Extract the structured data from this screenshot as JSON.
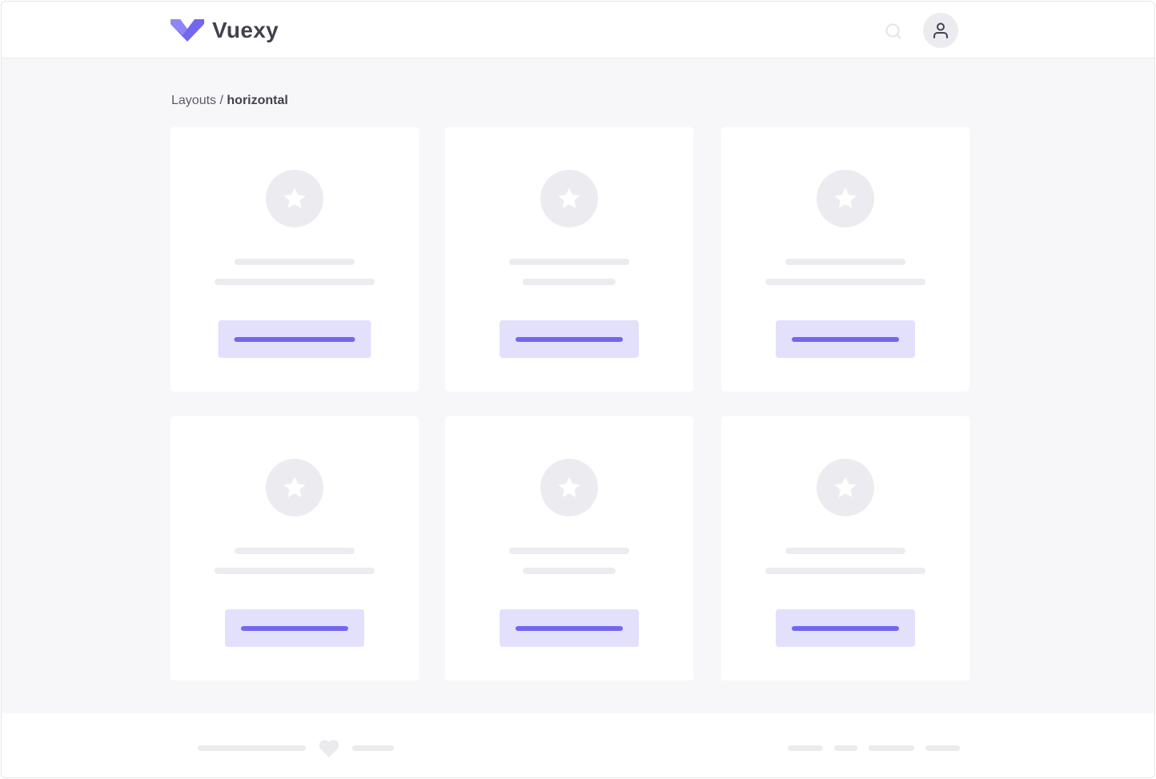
{
  "header": {
    "brand": "Vuexy",
    "logo_icon": "vuexy-logo",
    "search_icon": "search-icon",
    "avatar_icon": "user-icon",
    "accent": "#7367f0"
  },
  "breadcrumb": {
    "parent": "Layouts",
    "separator": " / ",
    "current": "horizontal"
  },
  "cards": [
    {
      "icon": "star-icon"
    },
    {
      "icon": "star-icon"
    },
    {
      "icon": "star-icon"
    },
    {
      "icon": "star-icon"
    },
    {
      "icon": "star-icon"
    },
    {
      "icon": "star-icon"
    }
  ],
  "footer": {
    "heart_icon": "heart-icon"
  }
}
